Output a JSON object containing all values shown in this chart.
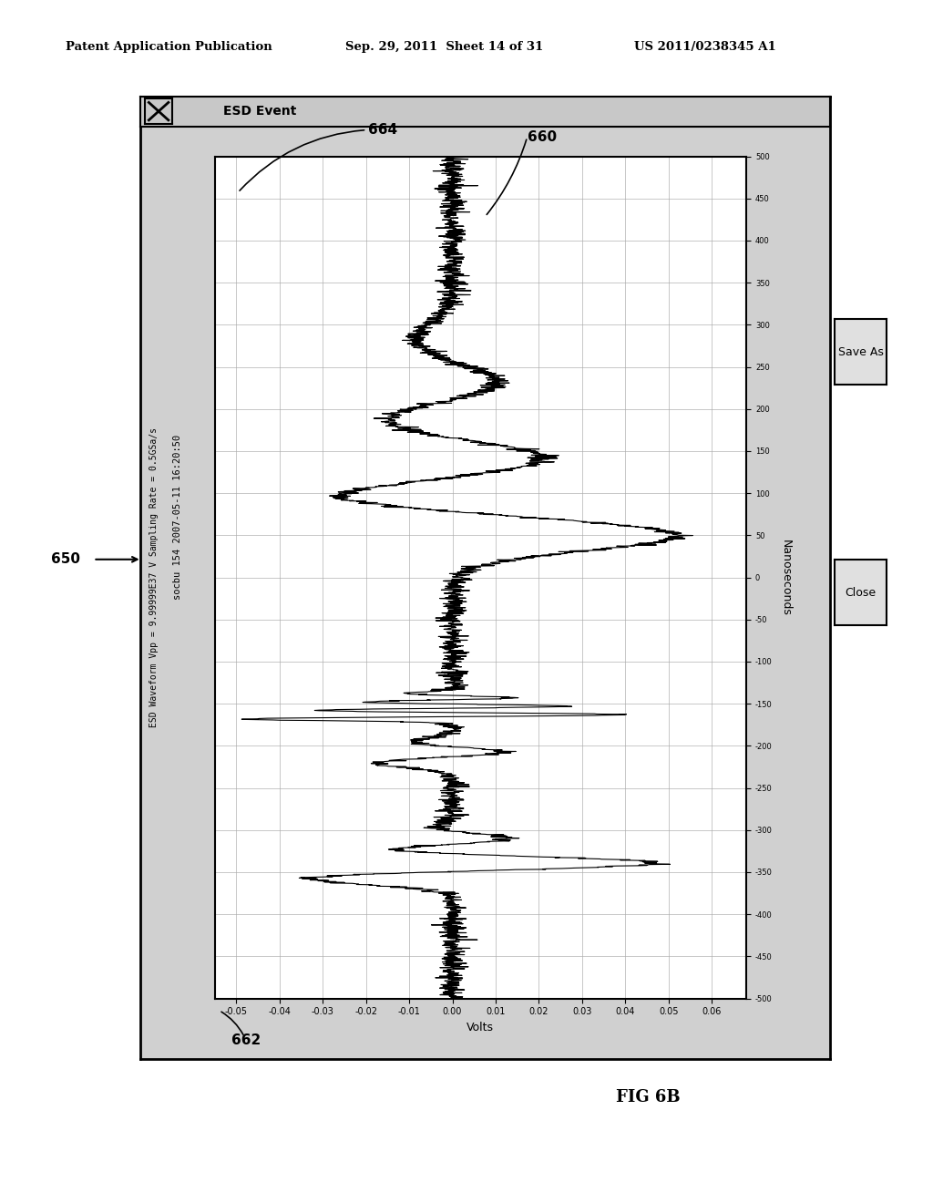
{
  "page_header_left": "Patent Application Publication",
  "page_header_center": "Sep. 29, 2011  Sheet 14 of 31",
  "page_header_right": "US 2011/0238345 A1",
  "fig_label": "FIG 6B",
  "label_650": "650",
  "label_660": "660",
  "label_662": "662",
  "label_664": "664",
  "window_title": "ESD Event",
  "chart_title_line1": "socbu 154 2007-05-11 16:20:50",
  "chart_title_line2": "ESD Waveform Vpp = 9.99999E37 V Sampling Rate = 0.5GSa/s",
  "ylabel_rotated": "Nanoseconds",
  "xlabel_rotated": "Volts",
  "ytick_values": [
    -500,
    -450,
    -400,
    -350,
    -300,
    -250,
    -200,
    -150,
    -100,
    -50,
    0,
    50,
    100,
    150,
    200,
    250,
    300,
    350,
    400,
    450,
    500
  ],
  "xtick_values": [
    -0.05,
    -0.04,
    -0.03,
    -0.02,
    -0.01,
    0.0,
    0.01,
    0.02,
    0.03,
    0.04,
    0.05,
    0.06
  ],
  "ymin": -510,
  "ymax": 510,
  "xmin": -0.055,
  "xmax": 0.068,
  "button_save": "Save As",
  "button_close": "Close",
  "bg_color": "#ffffff",
  "outer_bg": "#d0d0d0",
  "chart_bg": "#ffffff",
  "grid_color": "#aaaaaa",
  "line_color": "#000000",
  "titlebar_color": "#c8c8c8"
}
